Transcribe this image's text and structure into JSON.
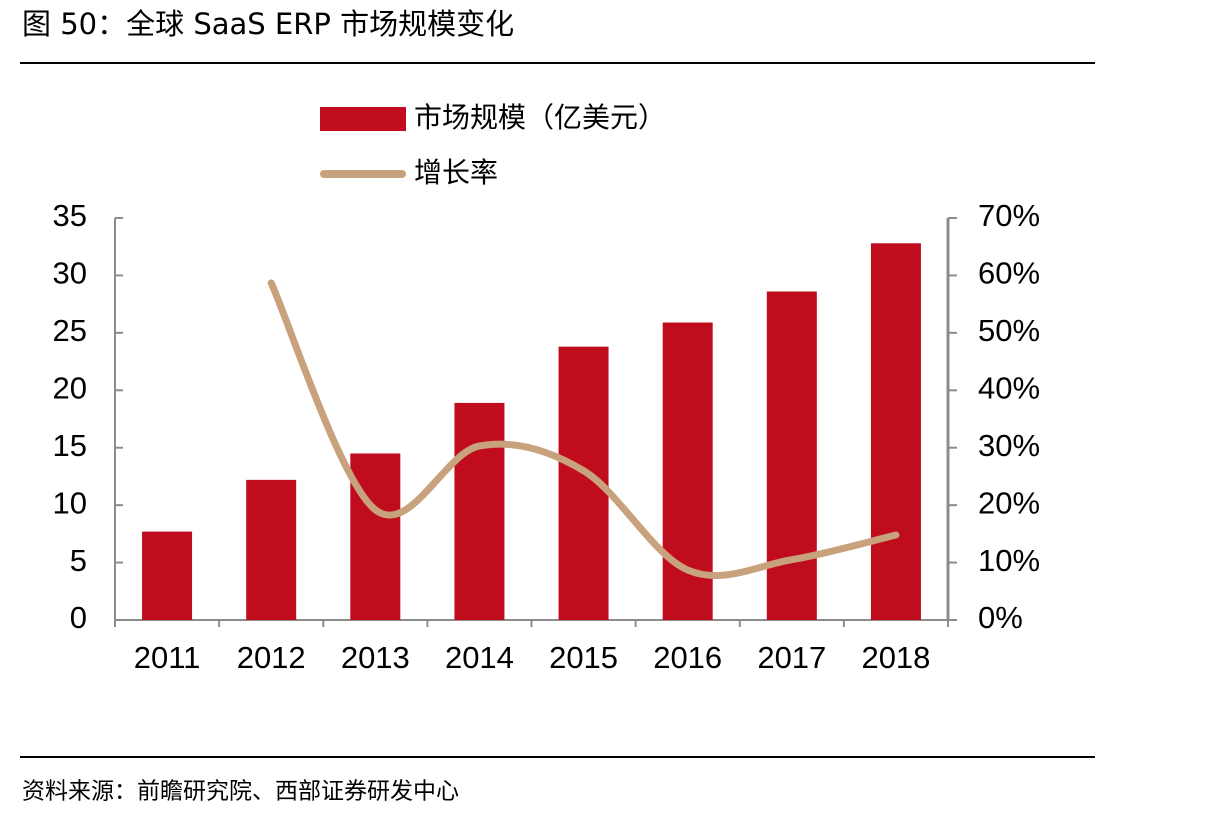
{
  "chart_data": {
    "type": "bar",
    "title": "图 50：全球 SaaS ERP 市场规模变化",
    "source": "资料来源：前瞻研究院、西部证券研发中心",
    "categories": [
      "2011",
      "2012",
      "2013",
      "2014",
      "2015",
      "2016",
      "2017",
      "2018"
    ],
    "series": [
      {
        "name": "市场规模（亿美元）",
        "color": "#c00d1e",
        "values": [
          7.7,
          12.2,
          14.5,
          18.9,
          23.8,
          25.9,
          28.6,
          32.8
        ]
      },
      {
        "name": "增长率",
        "color": "#c8a27c",
        "type": "line",
        "axis": "y2",
        "values": [
          null,
          58.7,
          19.2,
          30.3,
          26,
          8.7,
          10.5,
          14.8
        ]
      }
    ],
    "ylim": [
      0,
      35
    ],
    "yticks": [
      0,
      5,
      10,
      15,
      20,
      25,
      30,
      35
    ],
    "y2lim": [
      0,
      70
    ],
    "y2ticks": [
      {
        "value": 0,
        "label": "0%"
      },
      {
        "value": 10,
        "label": "10%"
      },
      {
        "value": 20,
        "label": "20%"
      },
      {
        "value": 30,
        "label": "30%"
      },
      {
        "value": 40,
        "label": "40%"
      },
      {
        "value": 50,
        "label": "50%"
      },
      {
        "value": 60,
        "label": "60%"
      },
      {
        "value": 70,
        "label": "70%"
      }
    ],
    "grid": false,
    "legend": "top"
  }
}
